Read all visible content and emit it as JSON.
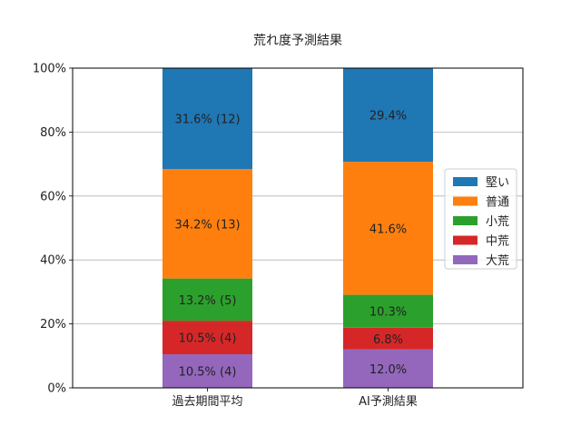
{
  "chart_data": {
    "type": "bar",
    "stacked": true,
    "title": "荒れ度予測結果",
    "categories": [
      "過去期間平均",
      "AI予測結果"
    ],
    "y_tick_labels": [
      "0%",
      "20%",
      "40%",
      "60%",
      "80%",
      "100%"
    ],
    "ylim": [
      0,
      100
    ],
    "grid": true,
    "legend_position": "right",
    "series": [
      {
        "name": "大荒",
        "color": "#9467bd",
        "values": [
          10.5,
          12.0
        ],
        "labels": [
          "10.5% (4)",
          "12.0%"
        ]
      },
      {
        "name": "中荒",
        "color": "#d62728",
        "values": [
          10.5,
          6.8
        ],
        "labels": [
          "10.5% (4)",
          "6.8%"
        ]
      },
      {
        "name": "小荒",
        "color": "#2ca02c",
        "values": [
          13.2,
          10.3
        ],
        "labels": [
          "13.2% (5)",
          "10.3%"
        ]
      },
      {
        "name": "普通",
        "color": "#ff7f0e",
        "values": [
          34.2,
          41.6
        ],
        "labels": [
          "34.2% (13)",
          "41.6%"
        ]
      },
      {
        "name": "堅い",
        "color": "#1f77b4",
        "values": [
          31.6,
          29.4
        ],
        "labels": [
          "31.6% (12)",
          "29.4%"
        ]
      }
    ],
    "legend_order": [
      "堅い",
      "普通",
      "小荒",
      "中荒",
      "大荒"
    ]
  }
}
